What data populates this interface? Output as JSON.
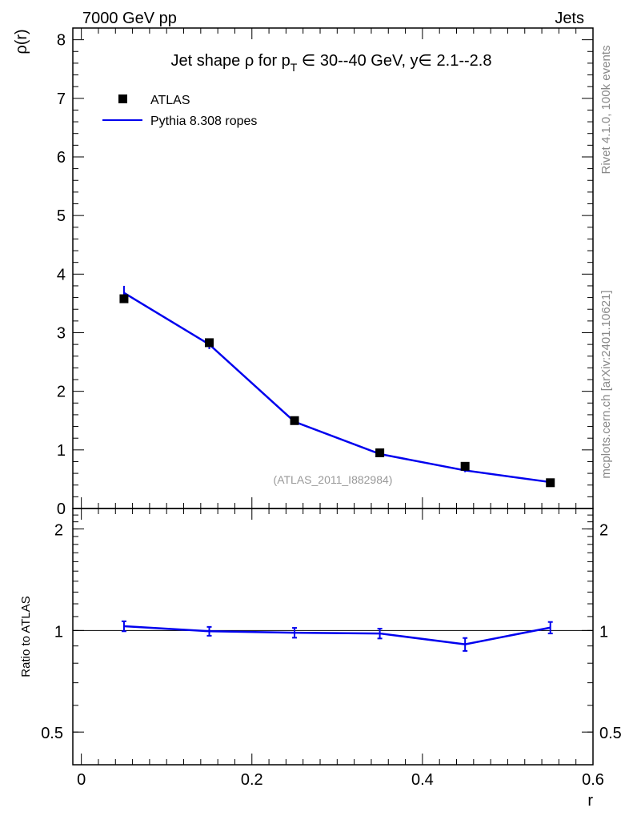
{
  "header": {
    "left": "7000 GeV pp",
    "right": "Jets"
  },
  "side_labels": {
    "rivet": "Rivet 4.1.0,  100k events",
    "mcplots": "mcplots.cern.ch [arXiv:2401.10621]"
  },
  "title": {
    "prefix": "Jet shape ",
    "rho": "ρ",
    "for": " for p",
    "sub": "T",
    "range": " ∈ 30--40 GeV, y∈ 2.1--2.8"
  },
  "legend": {
    "data_label": "ATLAS",
    "mc_label": "Pythia 8.308 ropes"
  },
  "watermark": "(ATLAS_2011_I882984)",
  "colors": {
    "mc": "#0000ee",
    "data": "#000000",
    "side": "#888888"
  },
  "chart_data": [
    {
      "type": "line",
      "title": "Jet shape ρ for pT ∈ 30--40 GeV, y∈ 2.1--2.8",
      "ylabel": "ρ(r)",
      "xlabel": "r",
      "xlim": [
        -0.01,
        0.6
      ],
      "ylim": [
        0,
        8.2
      ],
      "yticks": [
        0,
        1,
        2,
        3,
        4,
        5,
        6,
        7,
        8
      ],
      "ytick_labels": [
        "0",
        "1",
        "2",
        "3",
        "4",
        "5",
        "6",
        "7",
        "8"
      ],
      "x": [
        0.05,
        0.15,
        0.25,
        0.35,
        0.45,
        0.55
      ],
      "series": [
        {
          "name": "ATLAS",
          "style": "markers",
          "values": [
            3.58,
            2.83,
            1.5,
            0.95,
            0.72,
            0.44
          ],
          "errors": [
            0.05,
            0.04,
            0.03,
            0.02,
            0.02,
            0.015
          ]
        },
        {
          "name": "Pythia 8.308 ropes",
          "style": "line",
          "values": [
            3.68,
            2.8,
            1.48,
            0.93,
            0.65,
            0.45
          ],
          "errors": [
            0.12,
            0.08,
            0.05,
            0.03,
            0.03,
            0.02
          ]
        }
      ]
    },
    {
      "type": "line",
      "ylabel": "Ratio to ATLAS",
      "xlabel": "r",
      "xlim": [
        -0.01,
        0.6
      ],
      "ylim": [
        0.4,
        2.3
      ],
      "yscale": "log",
      "yticks": [
        0.5,
        1,
        2
      ],
      "ytick_labels": [
        "0.5",
        "1",
        "2"
      ],
      "xticks": [
        0,
        0.2,
        0.4,
        0.6
      ],
      "xtick_labels": [
        "0",
        "0.2",
        "0.4",
        "0.6"
      ],
      "x": [
        0.05,
        0.15,
        0.25,
        0.35,
        0.45,
        0.55
      ],
      "reference": 1,
      "series": [
        {
          "name": "Pythia 8.308 ropes / ATLAS",
          "values": [
            1.03,
            0.995,
            0.985,
            0.98,
            0.91,
            1.02
          ],
          "errors": [
            0.035,
            0.03,
            0.033,
            0.033,
            0.04,
            0.04
          ]
        }
      ]
    }
  ]
}
